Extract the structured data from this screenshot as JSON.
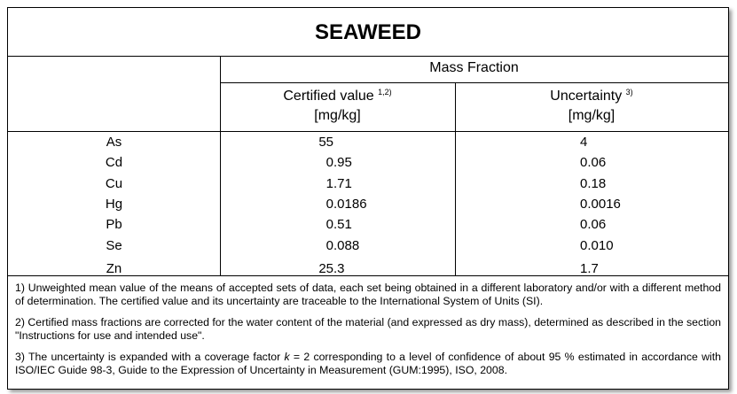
{
  "table": {
    "title": "SEAWEED",
    "group_header": "Mass Fraction",
    "columns": [
      {
        "label": "Certified value",
        "note": "1,2)",
        "unit": "[mg/kg]"
      },
      {
        "label": "Uncertainty",
        "note": "3)",
        "unit": "[mg/kg]"
      }
    ],
    "rows": [
      [
        "As",
        "55",
        "4"
      ],
      [
        "Cd",
        "0.95",
        "0.06"
      ],
      [
        "Cu",
        "1.71",
        "0.18"
      ],
      [
        "Hg",
        "0.0186",
        "0.0016"
      ],
      [
        "Pb",
        "0.51",
        "0.06"
      ],
      [
        "Se",
        "0.088",
        "0.010"
      ],
      [
        "Zn",
        "25.3",
        "1.7"
      ]
    ],
    "notes": [
      [
        {
          "text": "1) Unweighted mean value of the means of accepted sets of data, each set being obtained in a different laboratory and/or with a different method of determination. The certified value and its uncertainty are traceable to the International System of Units (SI).",
          "italic": false
        }
      ],
      [
        {
          "text": "2) Certified mass fractions are corrected for the water content of the material (and expressed as dry mass), determined as described in the section \"Instructions for use and intended use\".",
          "italic": false
        }
      ],
      [
        {
          "text": "3) The uncertainty is expanded with a coverage factor ",
          "italic": false
        },
        {
          "text": "k",
          "italic": true
        },
        {
          "text": " = 2 corresponding to a level of confidence of about 95 % estimated in accordance with ISO/IEC Guide 98-3, Guide to the Expression of Uncertainty in Measurement (GUM:1995), ISO, 2008.",
          "italic": false
        }
      ]
    ]
  }
}
